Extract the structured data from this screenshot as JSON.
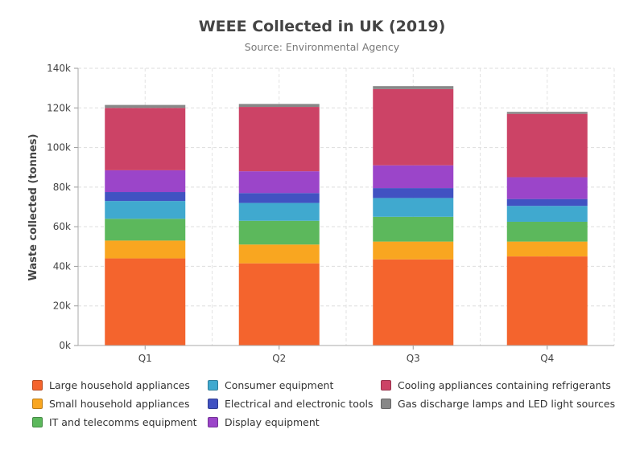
{
  "chart_data": {
    "type": "bar",
    "stacked": true,
    "title": "WEEE Collected in UK (2019)",
    "subtitle": "Source: Environmental Agency",
    "xlabel": "",
    "ylabel": "Waste collected (tonnes)",
    "ylim": [
      0,
      140000
    ],
    "yticks": [
      0,
      20000,
      40000,
      60000,
      80000,
      100000,
      120000,
      140000
    ],
    "ytick_labels": [
      "0k",
      "20k",
      "40k",
      "60k",
      "80k",
      "100k",
      "120k",
      "140k"
    ],
    "grid": true,
    "legend_position": "bottom",
    "categories": [
      "Q1",
      "Q2",
      "Q3",
      "Q4"
    ],
    "series": [
      {
        "name": "Large household appliances",
        "color": "#f4642d",
        "values": [
          44000,
          41500,
          43500,
          45000
        ]
      },
      {
        "name": "Small household appliances",
        "color": "#f9a620",
        "values": [
          9000,
          9500,
          9000,
          7500
        ]
      },
      {
        "name": "IT and telecomms equipment",
        "color": "#5cb85c",
        "values": [
          11000,
          12000,
          12500,
          10000
        ]
      },
      {
        "name": "Consumer equipment",
        "color": "#40a9cf",
        "values": [
          9000,
          9000,
          9500,
          8000
        ]
      },
      {
        "name": "Electrical and electronic tools",
        "color": "#4152c2",
        "values": [
          4500,
          5000,
          5000,
          3500
        ]
      },
      {
        "name": "Display equipment",
        "color": "#9b45c9",
        "values": [
          11000,
          11000,
          11500,
          11000
        ]
      },
      {
        "name": "Cooling appliances containing refrigerants",
        "color": "#cc4366",
        "values": [
          31500,
          32500,
          38500,
          32000
        ]
      },
      {
        "name": "Gas discharge lamps and LED light sources",
        "color": "#888888",
        "values": [
          1500,
          1500,
          1500,
          1000
        ]
      }
    ]
  }
}
